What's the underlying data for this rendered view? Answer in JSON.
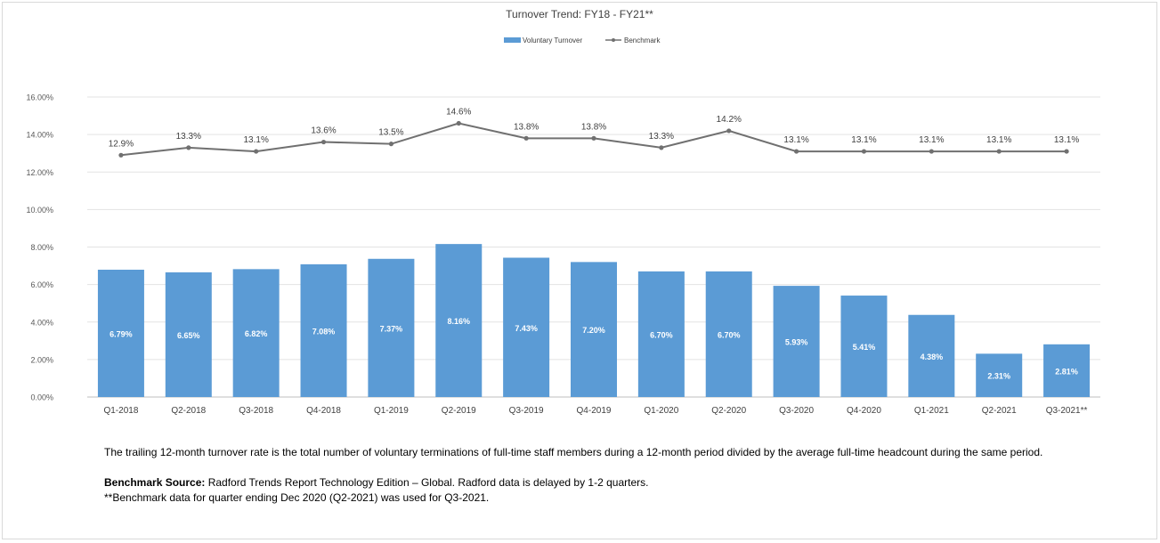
{
  "chart_data": {
    "type": "bar",
    "title": "Turnover Trend: FY18 - FY21**",
    "categories": [
      "Q1-2018",
      "Q2-2018",
      "Q3-2018",
      "Q4-2018",
      "Q1-2019",
      "Q2-2019",
      "Q3-2019",
      "Q4-2019",
      "Q1-2020",
      "Q2-2020",
      "Q3-2020",
      "Q4-2020",
      "Q1-2021",
      "Q2-2021",
      "Q3-2021**"
    ],
    "series": [
      {
        "name": "Voluntary Turnover",
        "kind": "bar",
        "color": "#5b9bd5",
        "values": [
          6.79,
          6.65,
          6.82,
          7.08,
          7.37,
          8.16,
          7.43,
          7.2,
          6.7,
          6.7,
          5.93,
          5.41,
          4.38,
          2.31,
          2.81
        ],
        "labels": [
          "6.79%",
          "6.65%",
          "6.82%",
          "7.08%",
          "7.37%",
          "8.16%",
          "7.43%",
          "7.20%",
          "6.70%",
          "6.70%",
          "5.93%",
          "5.41%",
          "4.38%",
          "2.31%",
          "2.81%"
        ]
      },
      {
        "name": "Benchmark",
        "kind": "line",
        "color": "#707070",
        "values": [
          12.9,
          13.3,
          13.1,
          13.6,
          13.5,
          14.6,
          13.8,
          13.8,
          13.3,
          14.2,
          13.1,
          13.1,
          13.1,
          13.1,
          13.1
        ],
        "labels": [
          "12.9%",
          "13.3%",
          "13.1%",
          "13.6%",
          "13.5%",
          "14.6%",
          "13.8%",
          "13.8%",
          "13.3%",
          "14.2%",
          "13.1%",
          "13.1%",
          "13.1%",
          "13.1%",
          "13.1%"
        ]
      }
    ],
    "ylim": [
      0,
      16
    ],
    "yticks": [
      "0.00%",
      "2.00%",
      "4.00%",
      "6.00%",
      "8.00%",
      "10.00%",
      "12.00%",
      "14.00%",
      "16.00%"
    ],
    "grid": true,
    "legend_position": "top-center",
    "xlabel": "",
    "ylabel": ""
  },
  "notes": {
    "definition": "The trailing 12-month turnover rate is the total number of voluntary terminations of full-time staff members during a 12-month period divided by the average full-time headcount during the same period.",
    "source_label": "Benchmark Source:",
    "source_text": " Radford Trends Report Technology Edition – Global. Radford data is delayed by 1-2 quarters.",
    "footnote": "**Benchmark data for quarter ending Dec 2020 (Q2-2021) was used for Q3-2021."
  }
}
